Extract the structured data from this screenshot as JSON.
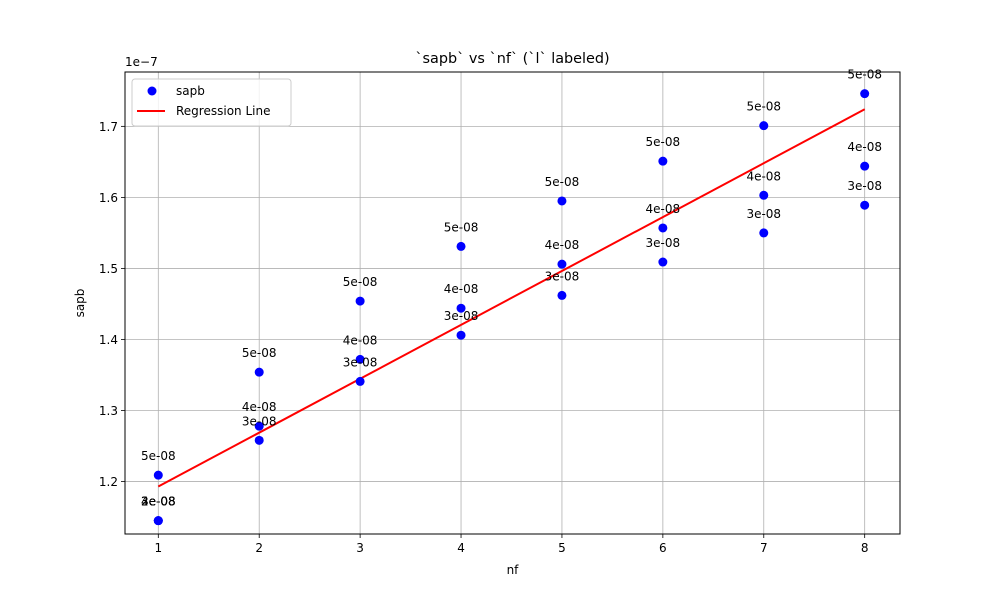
{
  "chart_data": {
    "type": "scatter",
    "title": "`sapb` vs `nf` (`l` labeled)",
    "xlabel": "nf",
    "ylabel": "sapb",
    "y_offset_text": "1e−7",
    "y_scale_factor": 1e-07,
    "xlim": [
      0.67,
      8.35
    ],
    "ylim": [
      1.1262,
      1.7765
    ],
    "x_ticks": [
      1,
      2,
      3,
      4,
      5,
      6,
      7,
      8
    ],
    "y_ticks": [
      1.2,
      1.3,
      1.4,
      1.5,
      1.6,
      1.7
    ],
    "y_tick_labels": [
      "1.2",
      "1.3",
      "1.4",
      "1.5",
      "1.6",
      "1.7"
    ],
    "grid": true,
    "legend_position": "top-left",
    "series": [
      {
        "name": "sapb",
        "kind": "scatter",
        "color": "#0000ff",
        "points": [
          {
            "x": 1,
            "y": 1.209,
            "label": "5e-08"
          },
          {
            "x": 1,
            "y": 1.145,
            "label": "2e-08"
          },
          {
            "x": 1,
            "y": 1.145,
            "label": "3e-08"
          },
          {
            "x": 1,
            "y": 1.145,
            "label": "4e-08"
          },
          {
            "x": 2,
            "y": 1.354,
            "label": "5e-08"
          },
          {
            "x": 2,
            "y": 1.278,
            "label": "4e-08"
          },
          {
            "x": 2,
            "y": 1.258,
            "label": "3e-08"
          },
          {
            "x": 3,
            "y": 1.454,
            "label": "5e-08"
          },
          {
            "x": 3,
            "y": 1.372,
            "label": "4e-08"
          },
          {
            "x": 3,
            "y": 1.341,
            "label": "3e-08"
          },
          {
            "x": 4,
            "y": 1.531,
            "label": "5e-08"
          },
          {
            "x": 4,
            "y": 1.444,
            "label": "4e-08"
          },
          {
            "x": 4,
            "y": 1.406,
            "label": "3e-08"
          },
          {
            "x": 5,
            "y": 1.595,
            "label": "5e-08"
          },
          {
            "x": 5,
            "y": 1.506,
            "label": "4e-08"
          },
          {
            "x": 5,
            "y": 1.462,
            "label": "3e-08"
          },
          {
            "x": 6,
            "y": 1.651,
            "label": "5e-08"
          },
          {
            "x": 6,
            "y": 1.557,
            "label": "4e-08"
          },
          {
            "x": 6,
            "y": 1.509,
            "label": "3e-08"
          },
          {
            "x": 7,
            "y": 1.701,
            "label": "5e-08"
          },
          {
            "x": 7,
            "y": 1.603,
            "label": "4e-08"
          },
          {
            "x": 7,
            "y": 1.55,
            "label": "3e-08"
          },
          {
            "x": 8,
            "y": 1.746,
            "label": "5e-08"
          },
          {
            "x": 8,
            "y": 1.644,
            "label": "4e-08"
          },
          {
            "x": 8,
            "y": 1.589,
            "label": "3e-08"
          }
        ]
      },
      {
        "name": "Regression Line",
        "kind": "line",
        "color": "#ff0000",
        "x": [
          1,
          8
        ],
        "y": [
          1.193,
          1.724
        ]
      }
    ]
  }
}
